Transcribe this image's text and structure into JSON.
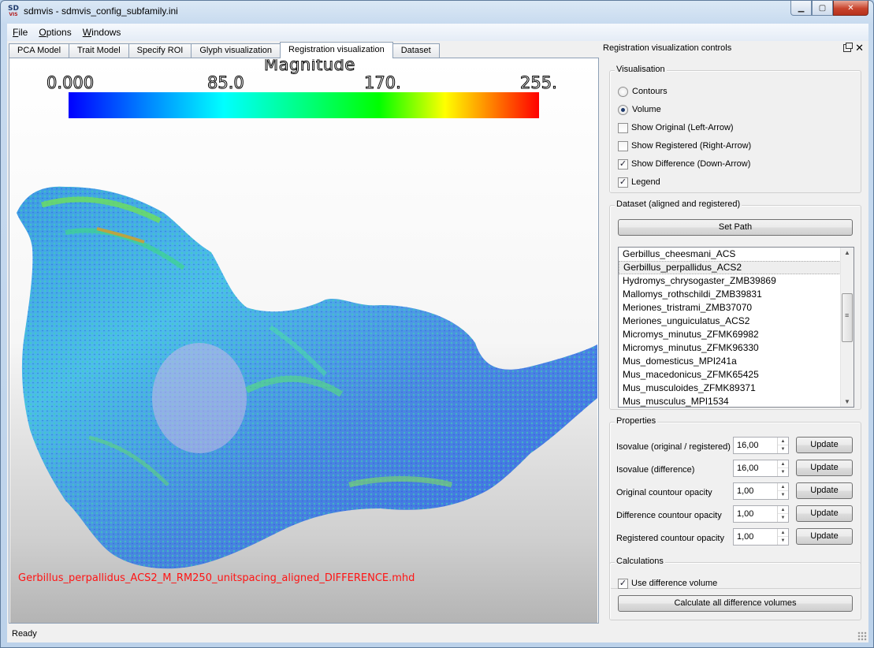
{
  "window": {
    "title": "sdmvis - sdmvis_config_subfamily.ini",
    "icon_text": "SD",
    "icon_sub": "VIS"
  },
  "menu": [
    {
      "label": "File",
      "mnemonic": "F",
      "rest": "ile"
    },
    {
      "label": "Options",
      "mnemonic": "O",
      "rest": "ptions"
    },
    {
      "label": "Windows",
      "mnemonic": "W",
      "rest": "indows"
    }
  ],
  "tabs": [
    {
      "label": "PCA Model"
    },
    {
      "label": "Trait Model"
    },
    {
      "label": "Specify ROI"
    },
    {
      "label": "Glyph visualization"
    },
    {
      "label": "Registration visualization"
    },
    {
      "label": "Dataset"
    }
  ],
  "viewport": {
    "legend_title": "Magnitude",
    "ticks": [
      "0.000",
      "85.0",
      "170.",
      "255."
    ],
    "filename": "Gerbillus_perpallidus_ACS2_M_RM250_unitspacing_aligned_DIFFERENCE.mhd"
  },
  "status": {
    "text": "Ready"
  },
  "dock": {
    "title": "Registration visualization controls",
    "visualisation": {
      "title": "Visualisation",
      "contours": "Contours",
      "volume": "Volume",
      "show_original": "Show Original (Left-Arrow)",
      "show_registered": "Show Registered (Right-Arrow)",
      "show_difference": "Show Difference (Down-Arrow)",
      "legend": "Legend",
      "check_mark": "✓"
    },
    "dataset": {
      "title": "Dataset (aligned and registered)",
      "set_path": "Set Path",
      "items": [
        "Gerbillus_cheesmani_ACS",
        "Gerbillus_perpallidus_ACS2",
        "Hydromys_chrysogaster_ZMB39869",
        "Mallomys_rothschildi_ZMB39831",
        "Meriones_tristrami_ZMB37070",
        "Meriones_unguiculatus_ACS2",
        "Micromys_minutus_ZFMK69982",
        "Micromys_minutus_ZFMK96330",
        "Mus_domesticus_MPI241a",
        "Mus_macedonicus_ZFMK65425",
        "Mus_musculoides_ZFMK89371",
        "Mus_musculus_MPI1534"
      ]
    },
    "properties": {
      "title": "Properties",
      "update": "Update",
      "rows": [
        {
          "label": "Isovalue (original / registered)",
          "value": "16,00"
        },
        {
          "label": "Isovalue (difference)",
          "value": "16,00"
        },
        {
          "label": "Original countour opacity",
          "value": "1,00"
        },
        {
          "label": "Difference countour opacity",
          "value": "1,00"
        },
        {
          "label": "Registered countour opacity",
          "value": "1,00"
        }
      ]
    },
    "calculations": {
      "title": "Calculations",
      "use_difference": "Use difference volume",
      "calculate_all": "Calculate all difference volumes"
    }
  }
}
